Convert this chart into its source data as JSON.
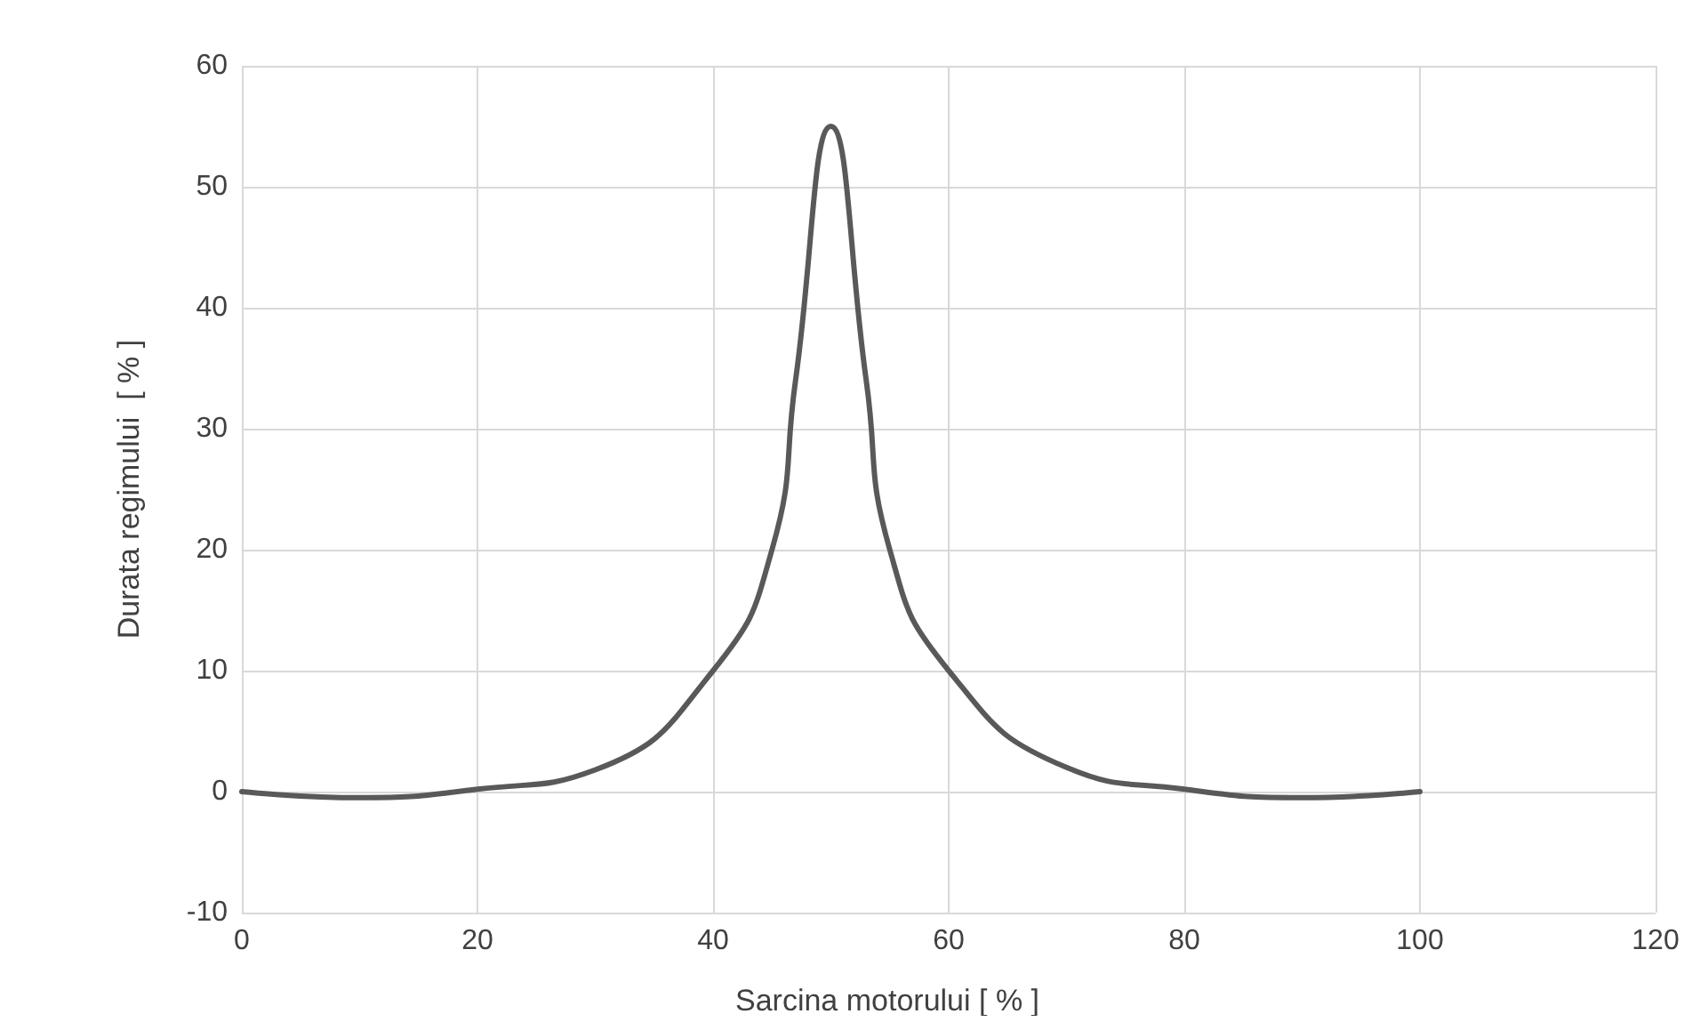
{
  "chart_data": {
    "type": "line",
    "xlabel": "Sarcina motorului [ % ]",
    "ylabel": "Durata regimului  [ % ]",
    "x": [
      0,
      10,
      20,
      30,
      40,
      45,
      47,
      50,
      53,
      55,
      60,
      70,
      80,
      90,
      100
    ],
    "series": [
      {
        "color": "#595959",
        "values": [
          0,
          -0.5,
          0.2,
          1.8,
          10,
          20,
          34,
          55,
          34,
          20,
          10,
          2,
          0.2,
          -0.5,
          0
        ]
      }
    ],
    "xlim": [
      0,
      120
    ],
    "xticks": [
      0,
      20,
      40,
      60,
      80,
      100,
      120
    ],
    "ylim": [
      -10,
      60
    ],
    "yticks": [
      -10,
      0,
      10,
      20,
      30,
      40,
      50,
      60
    ],
    "grid": true,
    "marker": "none",
    "line_style": "solid"
  }
}
